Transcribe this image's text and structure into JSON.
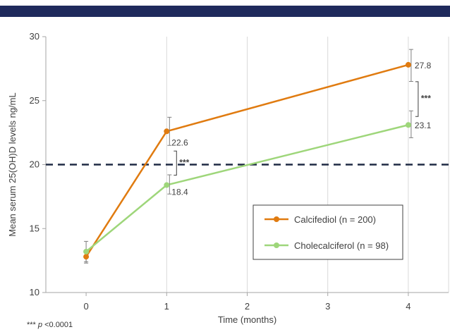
{
  "chart_data": {
    "type": "line",
    "x": [
      0,
      1,
      2,
      3,
      4
    ],
    "xlabel": "Time (months)",
    "ylabel": "Mean serum 25(OH)D levels ng/mL",
    "ylim": [
      10,
      30
    ],
    "yticks": [
      10,
      15,
      20,
      25,
      30
    ],
    "xlim": [
      -0.5,
      4.5
    ],
    "grid": "vertical",
    "reference_line": 20,
    "legend_position": "center-right",
    "series": [
      {
        "name": "Calcifediol (n = 200)",
        "color": "#e07b10",
        "x": [
          0,
          1,
          4
        ],
        "y": [
          12.8,
          22.6,
          27.8
        ],
        "err_low": [
          12.4,
          21.5,
          26.5
        ],
        "err_high": [
          13.3,
          23.7,
          29.0
        ],
        "labels": [
          "",
          "22.6",
          "27.8"
        ]
      },
      {
        "name": "Cholecalciferol (n = 98)",
        "color": "#9ed67a",
        "x": [
          0,
          1,
          4
        ],
        "y": [
          13.2,
          18.4,
          23.1
        ],
        "err_low": [
          12.3,
          17.7,
          22.1
        ],
        "err_high": [
          14.0,
          19.2,
          24.2
        ],
        "labels": [
          "",
          "18.4",
          "23.1"
        ]
      }
    ],
    "significance_marker": "***",
    "significance_at": [
      1,
      4
    ]
  },
  "footnote": {
    "stars": "***",
    "p": "p",
    "text": "<0.0001"
  }
}
